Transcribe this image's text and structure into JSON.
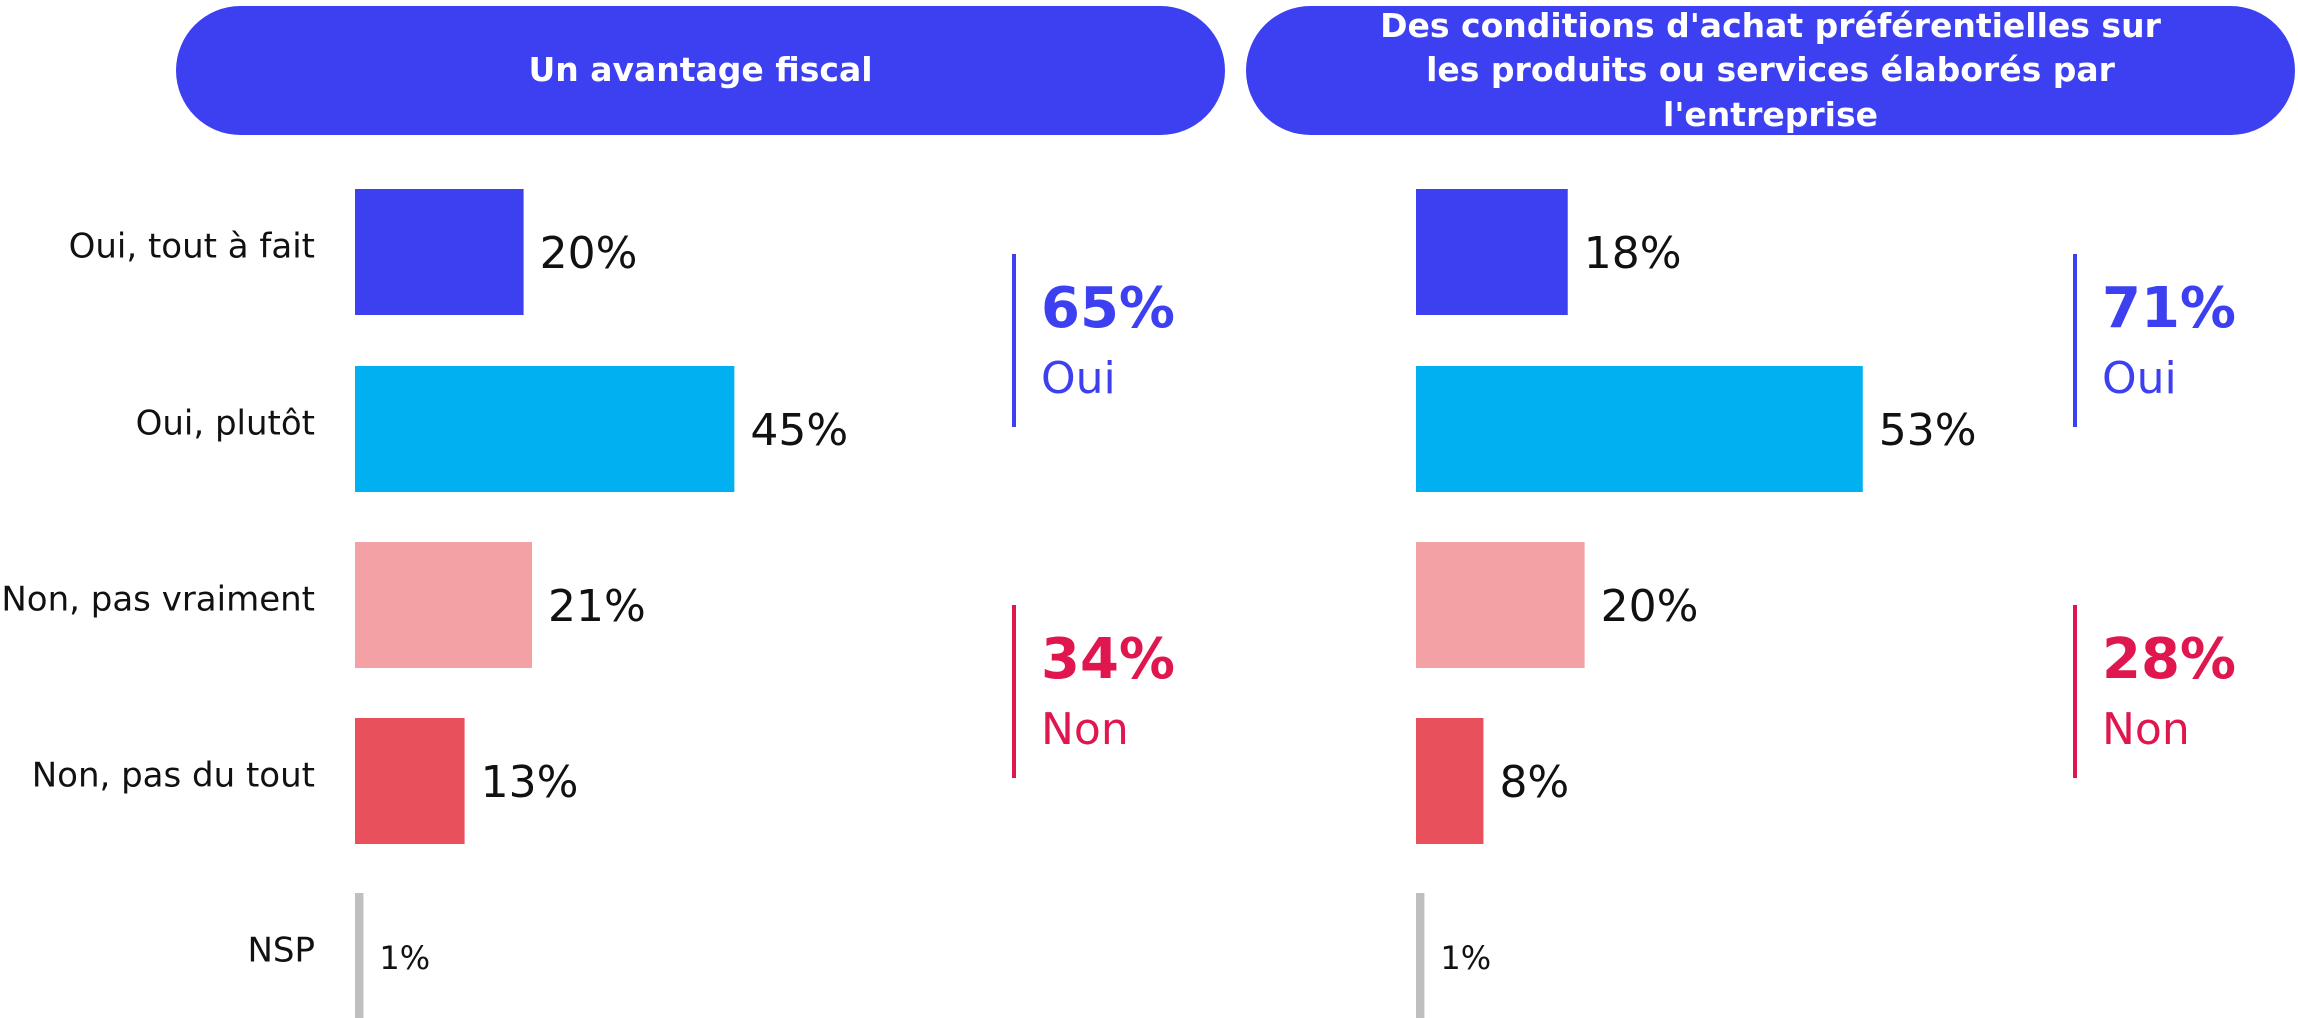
{
  "chart_data": [
    {
      "type": "bar",
      "title": "Un avantage fiscal",
      "categories": [
        "Oui, tout à fait",
        "Oui, plutôt",
        "Non, pas vraiment",
        "Non, pas du tout",
        "NSP"
      ],
      "values": [
        20,
        45,
        21,
        13,
        1
      ],
      "value_labels": [
        "20%",
        "45%",
        "21%",
        "13%",
        "1%"
      ],
      "colors": [
        "#3d40f0",
        "#00b0f0",
        "#f4a1a5",
        "#e8505b",
        "#bfbfbf"
      ],
      "summary": [
        {
          "value": 65,
          "label": "65%",
          "text": "Oui",
          "color": "#3d40f0"
        },
        {
          "value": 34,
          "label": "34%",
          "text": "Non",
          "color": "#e0164f"
        }
      ]
    },
    {
      "type": "bar",
      "title": "Des conditions d'achat préférentielles sur les produits ou services élaborés par l'entreprise",
      "values": [
        18,
        53,
        20,
        8,
        1
      ],
      "value_labels": [
        "18%",
        "53%",
        "20%",
        "8%",
        "1%"
      ],
      "colors": [
        "#3d40f0",
        "#00b0f0",
        "#f4a1a5",
        "#e8505b",
        "#bfbfbf"
      ],
      "summary": [
        {
          "value": 71,
          "label": "71%",
          "text": "Oui",
          "color": "#3d40f0"
        },
        {
          "value": 28,
          "label": "28%",
          "text": "Non",
          "color": "#e0164f"
        }
      ]
    }
  ]
}
